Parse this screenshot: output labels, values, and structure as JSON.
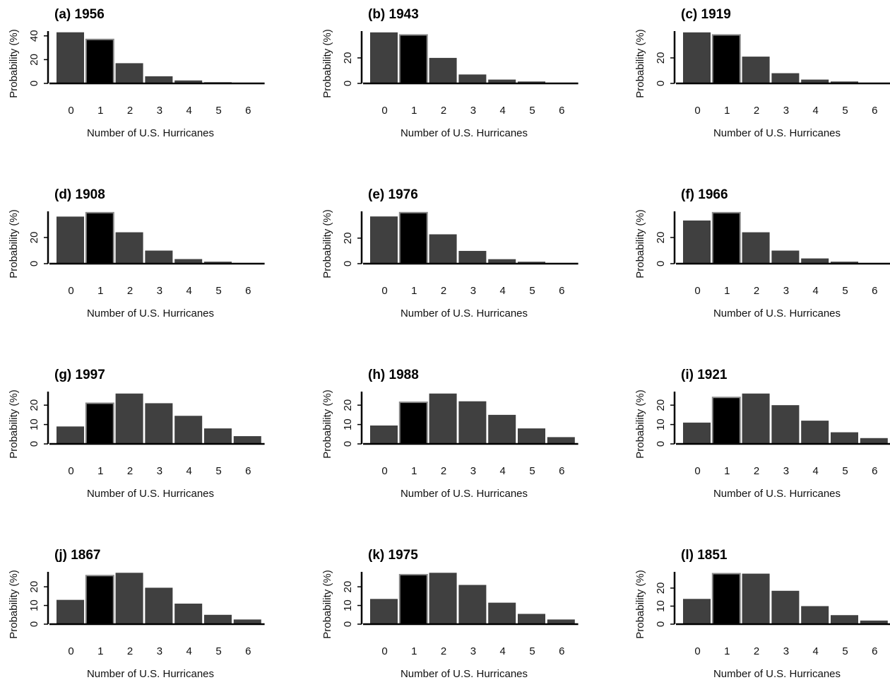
{
  "colors": {
    "bar": "#404040",
    "highlight_bar": "#000000",
    "bar_edge": "#8a8a8a",
    "axis": "#000000"
  },
  "chart_data": [
    {
      "type": "bar",
      "title": "(a) 1956",
      "xlabel": "Number of U.S. Hurricanes",
      "ylabel": "Probability (%)",
      "categories": [
        "0",
        "1",
        "2",
        "3",
        "4",
        "5",
        "6"
      ],
      "values": [
        43,
        37,
        17,
        6,
        2.5,
        1,
        0.5
      ],
      "highlight_index": 1,
      "ylim": [
        0,
        44
      ],
      "yticks": [
        0,
        20,
        40
      ]
    },
    {
      "type": "bar",
      "title": "(b) 1943",
      "xlabel": "Number of U.S. Hurricanes",
      "ylabel": "Probability (%)",
      "categories": [
        "0",
        "1",
        "2",
        "3",
        "4",
        "5",
        "6"
      ],
      "values": [
        40,
        38,
        20,
        7,
        3,
        1.5,
        0.5
      ],
      "highlight_index": 1,
      "ylim": [
        0,
        41
      ],
      "yticks": [
        0,
        20
      ]
    },
    {
      "type": "bar",
      "title": "(c) 1919",
      "xlabel": "Number of U.S. Hurricanes",
      "ylabel": "Probability (%)",
      "categories": [
        "0",
        "1",
        "2",
        "3",
        "4",
        "5",
        "6"
      ],
      "values": [
        40,
        38,
        21,
        8,
        3,
        1.5,
        0.5
      ],
      "highlight_index": 1,
      "ylim": [
        0,
        41
      ],
      "yticks": [
        0,
        20
      ]
    },
    {
      "type": "bar",
      "title": "(d) 1908",
      "xlabel": "Number of U.S. Hurricanes",
      "ylabel": "Probability (%)",
      "categories": [
        "0",
        "1",
        "2",
        "3",
        "4",
        "5",
        "6"
      ],
      "values": [
        36,
        39,
        24,
        10,
        3.5,
        1.5,
        0.5
      ],
      "highlight_index": 1,
      "ylim": [
        0,
        40
      ],
      "yticks": [
        0,
        20
      ]
    },
    {
      "type": "bar",
      "title": "(e) 1976",
      "xlabel": "Number of U.S. Hurricanes",
      "ylabel": "Probability (%)",
      "categories": [
        "0",
        "1",
        "2",
        "3",
        "4",
        "5",
        "6"
      ],
      "values": [
        37,
        40,
        23,
        10,
        3.5,
        1.5,
        0.5
      ],
      "highlight_index": 1,
      "ylim": [
        0,
        41
      ],
      "yticks": [
        0,
        20
      ]
    },
    {
      "type": "bar",
      "title": "(f) 1966",
      "xlabel": "Number of U.S. Hurricanes",
      "ylabel": "Probability (%)",
      "categories": [
        "0",
        "1",
        "2",
        "3",
        "4",
        "5",
        "6"
      ],
      "values": [
        33,
        39,
        24,
        10,
        4,
        1.5,
        0.5
      ],
      "highlight_index": 1,
      "ylim": [
        0,
        40
      ],
      "yticks": [
        0,
        20
      ]
    },
    {
      "type": "bar",
      "title": "(g) 1997",
      "xlabel": "Number of U.S. Hurricanes",
      "ylabel": "Probability (%)",
      "categories": [
        "0",
        "1",
        "2",
        "3",
        "4",
        "5",
        "6"
      ],
      "values": [
        9,
        21,
        26,
        21,
        14.5,
        8,
        4
      ],
      "highlight_index": 1,
      "ylim": [
        0,
        27
      ],
      "yticks": [
        0,
        10,
        20
      ]
    },
    {
      "type": "bar",
      "title": "(h) 1988",
      "xlabel": "Number of U.S. Hurricanes",
      "ylabel": "Probability (%)",
      "categories": [
        "0",
        "1",
        "2",
        "3",
        "4",
        "5",
        "6"
      ],
      "values": [
        9.5,
        21.5,
        26,
        22,
        15,
        8,
        3.5
      ],
      "highlight_index": 1,
      "ylim": [
        0,
        27
      ],
      "yticks": [
        0,
        10,
        20
      ]
    },
    {
      "type": "bar",
      "title": "(i) 1921",
      "xlabel": "Number of U.S. Hurricanes",
      "ylabel": "Probability (%)",
      "categories": [
        "0",
        "1",
        "2",
        "3",
        "4",
        "5",
        "6"
      ],
      "values": [
        11,
        24,
        26,
        20,
        12,
        6,
        3
      ],
      "highlight_index": 1,
      "ylim": [
        0,
        27
      ],
      "yticks": [
        0,
        10,
        20
      ]
    },
    {
      "type": "bar",
      "title": "(j) 1867",
      "xlabel": "Number of U.S. Hurricanes",
      "ylabel": "Probability (%)",
      "categories": [
        "0",
        "1",
        "2",
        "3",
        "4",
        "5",
        "6"
      ],
      "values": [
        13,
        26,
        27.5,
        19.5,
        11,
        5,
        2.5
      ],
      "highlight_index": 1,
      "ylim": [
        0,
        28
      ],
      "yticks": [
        0,
        10,
        20
      ]
    },
    {
      "type": "bar",
      "title": "(k) 1975",
      "xlabel": "Number of U.S. Hurricanes",
      "ylabel": "Probability (%)",
      "categories": [
        "0",
        "1",
        "2",
        "3",
        "4",
        "5",
        "6"
      ],
      "values": [
        13.5,
        26.5,
        27.5,
        21,
        11.5,
        5.5,
        2.5
      ],
      "highlight_index": 1,
      "ylim": [
        0,
        28
      ],
      "yticks": [
        0,
        10,
        20
      ]
    },
    {
      "type": "bar",
      "title": "(l) 1851",
      "xlabel": "Number of U.S. Hurricanes",
      "ylabel": "Probability (%)",
      "categories": [
        "0",
        "1",
        "2",
        "3",
        "4",
        "5",
        "6"
      ],
      "values": [
        14,
        28,
        28,
        18.5,
        10,
        5,
        2
      ],
      "highlight_index": 1,
      "ylim": [
        0,
        29
      ],
      "yticks": [
        0,
        10,
        20
      ]
    }
  ]
}
